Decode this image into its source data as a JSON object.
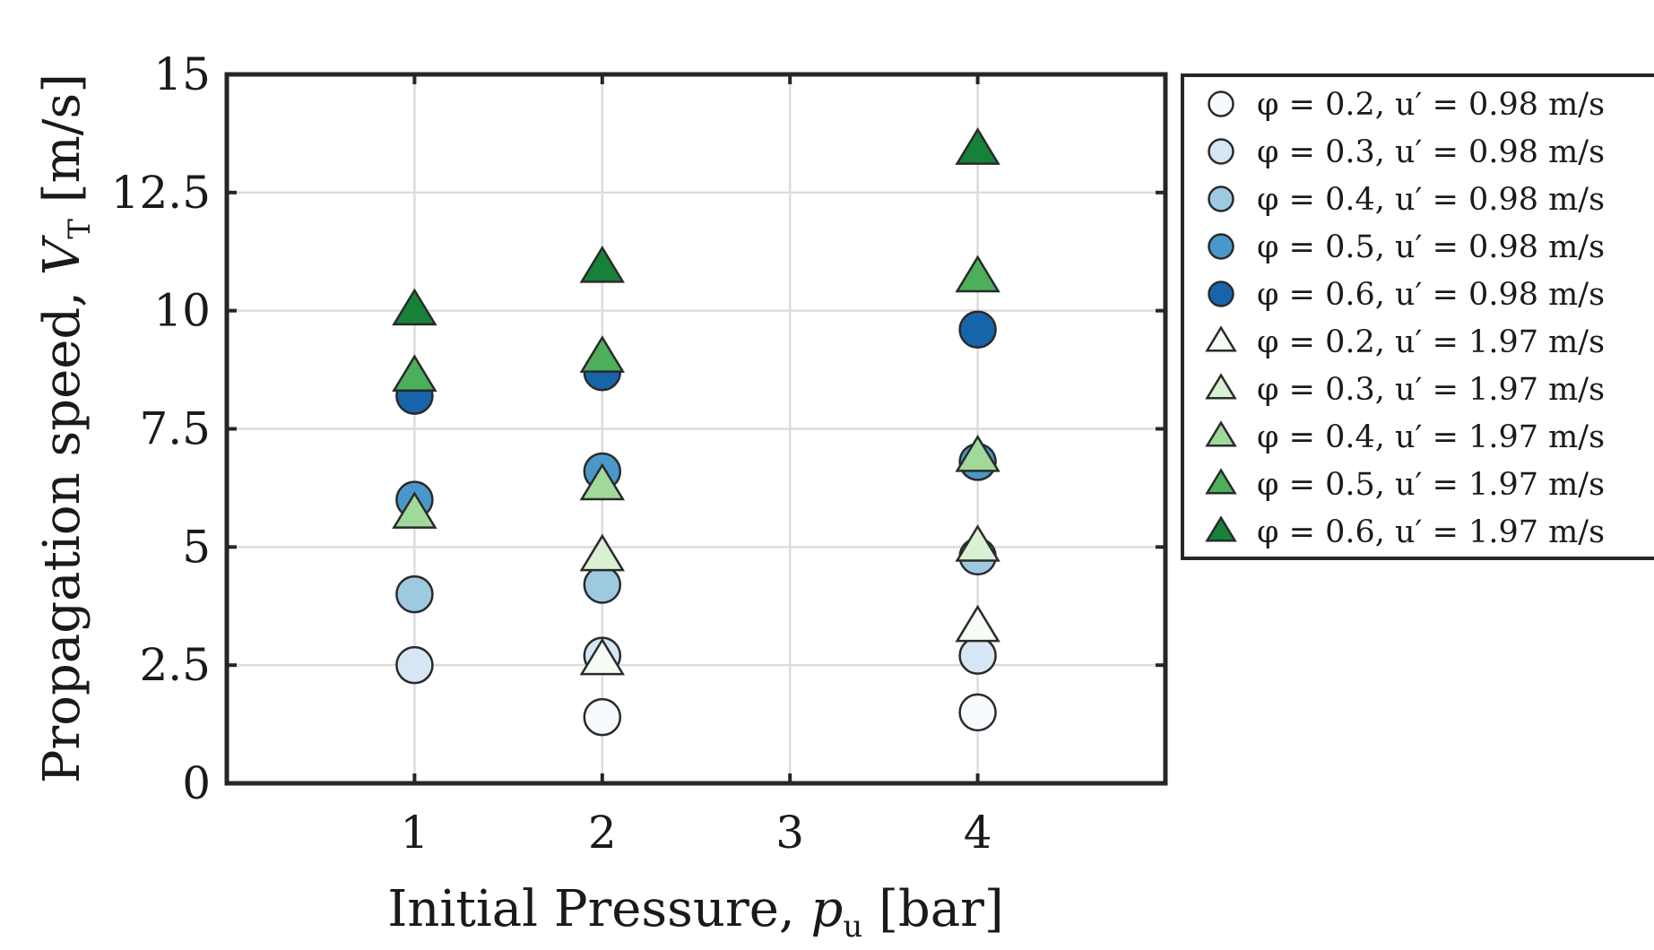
{
  "chart_data": {
    "type": "scatter",
    "title": "",
    "xlabel": "Initial Pressure, p_u [bar]",
    "ylabel": "Propagation speed, V_T [m/s]",
    "xlim": [
      0,
      5
    ],
    "ylim": [
      0,
      15
    ],
    "xticks": [
      1,
      2,
      3,
      4
    ],
    "xtick_labels": [
      "1",
      "2",
      "3",
      "4"
    ],
    "yticks": [
      0,
      2.5,
      5,
      7.5,
      10,
      12.5,
      15
    ],
    "ytick_labels": [
      "0",
      "2.5",
      "5",
      "7.5",
      "10",
      "12.5",
      "15"
    ],
    "grid": true,
    "legend_position": "outside-right",
    "series": [
      {
        "name": "φ = 0.2, u′ = 0.98 m/s",
        "marker": "circle",
        "color": "#f7fbff",
        "x": [
          2,
          4
        ],
        "y": [
          1.4,
          1.5
        ]
      },
      {
        "name": "φ = 0.3, u′ = 0.98 m/s",
        "marker": "circle",
        "color": "#d6e6f4",
        "x": [
          1,
          2,
          4
        ],
        "y": [
          2.5,
          2.7,
          2.7
        ]
      },
      {
        "name": "φ = 0.4, u′ = 0.98 m/s",
        "marker": "circle",
        "color": "#9ecae1",
        "x": [
          1,
          2,
          4
        ],
        "y": [
          4.0,
          4.2,
          4.8
        ]
      },
      {
        "name": "φ = 0.5, u′ = 0.98 m/s",
        "marker": "circle",
        "color": "#4a98c9",
        "x": [
          1,
          2,
          4
        ],
        "y": [
          6.0,
          6.6,
          6.8
        ]
      },
      {
        "name": "φ = 0.6, u′ = 0.98 m/s",
        "marker": "circle",
        "color": "#1764ab",
        "x": [
          1,
          2,
          4
        ],
        "y": [
          8.2,
          8.7,
          9.6
        ]
      },
      {
        "name": "φ = 0.2, u′ = 1.97 m/s",
        "marker": "triangle",
        "color": "#f7fcf5",
        "x": [
          2,
          4
        ],
        "y": [
          2.6,
          3.3
        ]
      },
      {
        "name": "φ = 0.3, u′ = 1.97 m/s",
        "marker": "triangle",
        "color": "#d9f0d3",
        "x": [
          2,
          4
        ],
        "y": [
          4.8,
          5.0
        ]
      },
      {
        "name": "φ = 0.4, u′ = 1.97 m/s",
        "marker": "triangle",
        "color": "#a1d99b",
        "x": [
          1,
          2,
          4
        ],
        "y": [
          5.7,
          6.3,
          6.9
        ]
      },
      {
        "name": "φ = 0.5, u′ = 1.97 m/s",
        "marker": "triangle",
        "color": "#4daf5b",
        "x": [
          1,
          2,
          4
        ],
        "y": [
          8.6,
          9.0,
          10.7
        ]
      },
      {
        "name": "φ = 0.6, u′ = 1.97 m/s",
        "marker": "triangle",
        "color": "#17813a",
        "x": [
          1,
          2,
          4
        ],
        "y": [
          10.0,
          10.9,
          13.4
        ]
      }
    ]
  }
}
